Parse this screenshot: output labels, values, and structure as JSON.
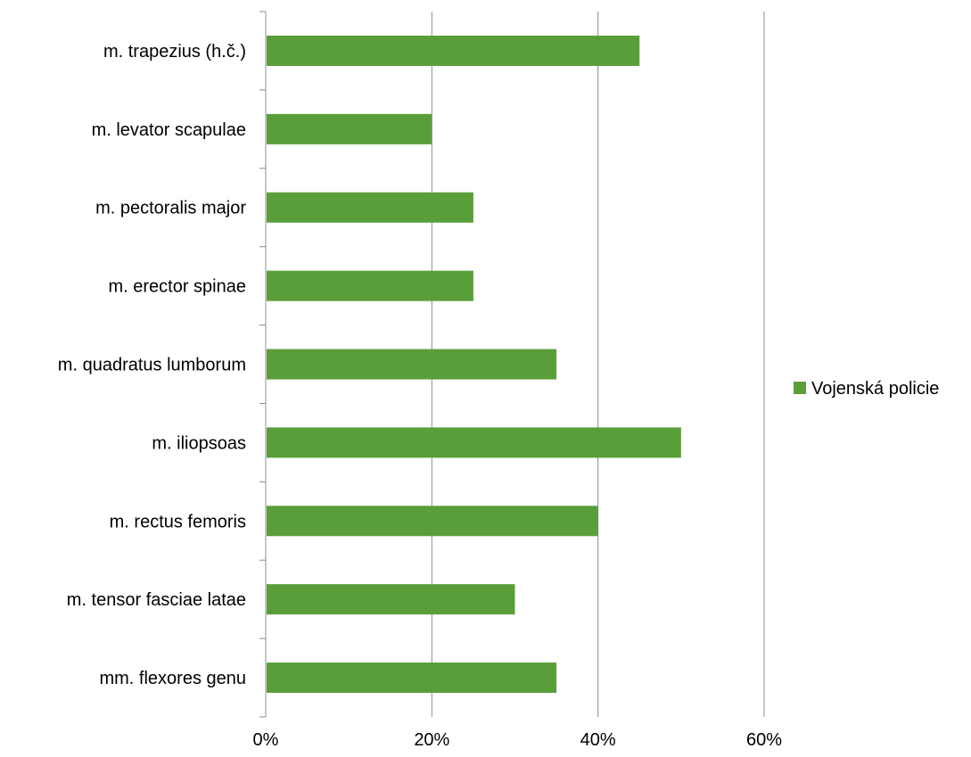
{
  "chart_data": {
    "type": "bar",
    "orientation": "horizontal",
    "categories": [
      "m. trapezius (h.č.)",
      "m. levator scapulae",
      "m. pectoralis major",
      "m. erector spinae",
      "m. quadratus lumborum",
      "m. iliopsoas",
      "m. rectus femoris",
      "m. tensor fasciae latae",
      "mm. flexores genu"
    ],
    "series": [
      {
        "name": "Vojenská policie",
        "values": [
          45,
          20,
          25,
          25,
          35,
          50,
          40,
          30,
          35
        ],
        "color": "#5a9e3a"
      }
    ],
    "x_ticks": [
      "0%",
      "20%",
      "40%",
      "60%"
    ],
    "xlim": [
      0,
      60
    ],
    "grid": true,
    "legend": "right",
    "title": "",
    "xlabel": "",
    "ylabel": ""
  }
}
